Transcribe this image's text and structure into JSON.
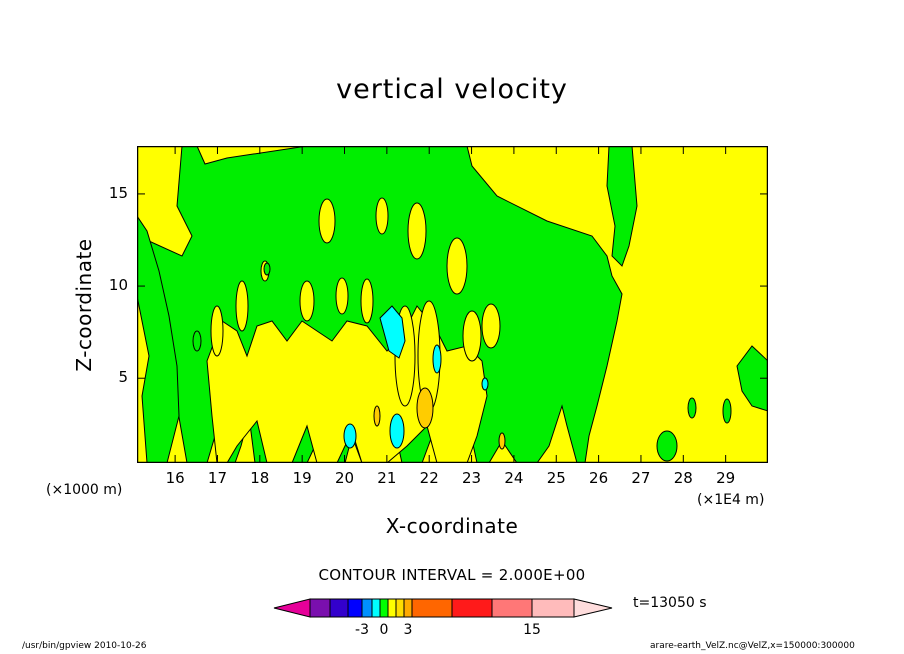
{
  "chart_data": {
    "type": "heatmap",
    "title": "vertical velocity",
    "xlabel": "X-coordinate",
    "ylabel": "Z-coordinate",
    "x_tick_labels": [
      "16",
      "17",
      "18",
      "19",
      "20",
      "21",
      "22",
      "23",
      "24",
      "25",
      "26",
      "27",
      "28",
      "29"
    ],
    "x_ticks": [
      16,
      17,
      18,
      19,
      20,
      21,
      22,
      23,
      24,
      25,
      26,
      27,
      28,
      29
    ],
    "x_scale_note_left": "(×1000 m)",
    "x_scale_note_right": "(×1E4 m)",
    "xlim": [
      15.1,
      30
    ],
    "y_tick_labels": [
      "5",
      "10",
      "15"
    ],
    "y_ticks": [
      5,
      10,
      15
    ],
    "ylim": [
      0.4,
      17.6
    ],
    "contour_interval": "CONTOUR INTERVAL = 2.000E+00",
    "time": "t=13050 s",
    "colorbar": {
      "colors": [
        "#e60099",
        "#7a0fae",
        "#3300cc",
        "#0000ff",
        "#0090ff",
        "#00ffff",
        "#00ff00",
        "#ffff00",
        "#ffdd00",
        "#ffaa00",
        "#ff6600",
        "#ff1a1a",
        "#ff7777",
        "#ffbbbb",
        "#ffdddd"
      ],
      "tick_labels": [
        "-3",
        "0",
        "3",
        "15"
      ],
      "tick_values": [
        -3,
        0,
        3,
        15
      ]
    },
    "regions": {
      "background_color": "#ffff00",
      "main_region_color": "#00ee00",
      "notable_features": [
        {
          "color": "#00ffff",
          "x": 21.1,
          "z": 7.2
        },
        {
          "color": "#00ffff",
          "x": 21.1,
          "z": 1.5
        },
        {
          "color": "#00ffff",
          "x": 20.1,
          "z": 1.4
        },
        {
          "color": "#00ffff",
          "x": 22.2,
          "z": 6.2
        },
        {
          "color": "#ffaa00",
          "x": 22.0,
          "z": 2.8
        },
        {
          "color": "#ffaa00",
          "x": 20.8,
          "z": 2.6
        }
      ]
    }
  },
  "footer": {
    "left": "/usr/bin/gpview   2010-10-26",
    "right": "arare-earth_VelZ.nc@VelZ,x=150000:300000"
  }
}
